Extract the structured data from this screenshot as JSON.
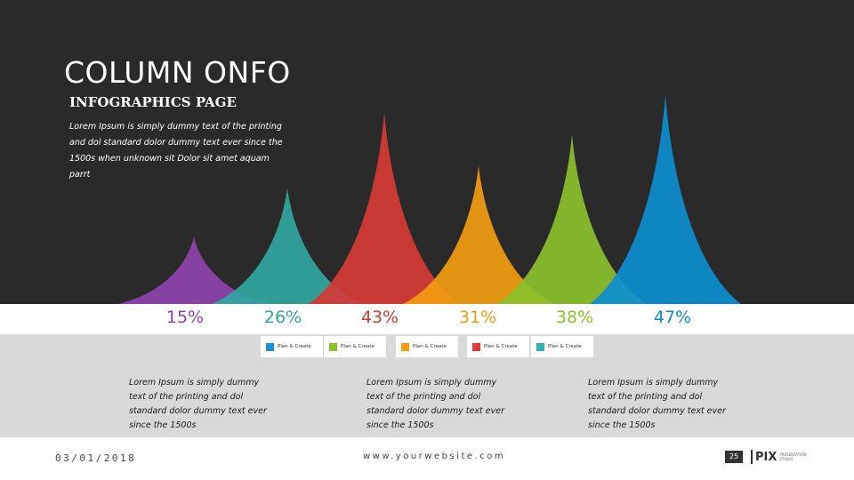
{
  "header": {
    "title": "COLUMN ONFO",
    "subtitle": "INFOGRAPHICS PAGE",
    "intro": "Lorem Ipsum is simply dummy text of the printing and dol standard dolor dummy text ever since the 1500s when unknown sit Dolor sit amet aquam parrt"
  },
  "peaks": [
    {
      "percent": "15%",
      "color": "#8e44ad",
      "value": 15
    },
    {
      "percent": "26%",
      "color": "#31a79e",
      "value": 26
    },
    {
      "percent": "43%",
      "color": "#d53b36",
      "value": 43
    },
    {
      "percent": "31%",
      "color": "#f39c12",
      "value": 31
    },
    {
      "percent": "38%",
      "color": "#8cbf2c",
      "value": 38
    },
    {
      "percent": "47%",
      "color": "#0d8ecf",
      "value": 47
    }
  ],
  "legend": [
    {
      "label": "Plan & Create",
      "color": "#1c8fd6"
    },
    {
      "label": "Plan & Create",
      "color": "#8cbf2c"
    },
    {
      "label": "Plan & Create",
      "color": "#f39c12"
    },
    {
      "label": "Plan & Create",
      "color": "#e13a3a"
    },
    {
      "label": "Plan & Create",
      "color": "#31b0b0"
    }
  ],
  "columns": [
    {
      "text": "Lorem Ipsum is simply dummy text of the printing and dol standard dolor dummy text ever since the 1500s"
    },
    {
      "text": "Lorem Ipsum is simply dummy text of the printing and dol standard dolor dummy text ever since the 1500s"
    },
    {
      "text": "Lorem Ipsum is simply dummy text of the printing and dol standard dolor dummy text ever since the 1500s"
    }
  ],
  "footer": {
    "date": "03/01/2018",
    "website": "www.yourwebsite.com",
    "page_number": "25",
    "logo_text": "PIX",
    "logo_subtext": "PRESENTATION STUDIO"
  }
}
